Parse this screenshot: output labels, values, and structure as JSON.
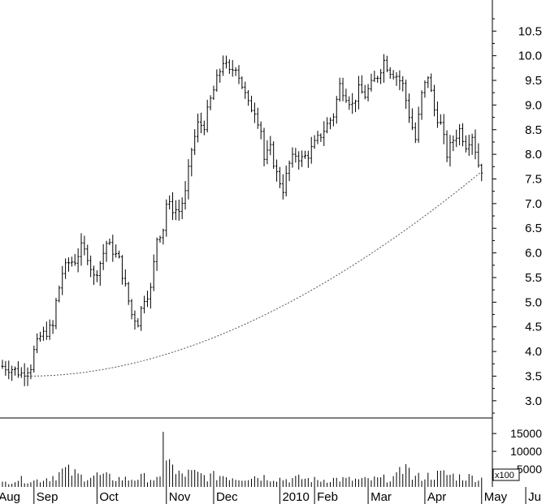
{
  "chart_data": {
    "type": "ohlc",
    "title": "",
    "xlabel": "",
    "ylabel": "",
    "price_axis": {
      "ylim": [
        2.75,
        10.9
      ],
      "ticks": [
        3.0,
        3.5,
        4.0,
        4.5,
        5.0,
        5.5,
        6.0,
        6.5,
        7.0,
        7.5,
        8.0,
        8.5,
        9.0,
        9.5,
        10.0,
        10.5
      ],
      "tick_labels": [
        "3.0",
        "3.5",
        "4.0",
        "4.5",
        "5.0",
        "5.5",
        "6.0",
        "6.5",
        "7.0",
        "7.5",
        "8.0",
        "8.5",
        "9.0",
        "9.5",
        "10.0",
        "10.5"
      ],
      "position": "right"
    },
    "volume_axis": {
      "ylim": [
        0,
        18000
      ],
      "ticks": [
        5000,
        10000,
        15000
      ],
      "tick_labels": [
        "5000",
        "10000",
        "15000"
      ],
      "multiplier_label": "x100"
    },
    "x_axis": {
      "labels": [
        "Aug",
        "Sep",
        "Oct",
        "Nov",
        "Dec",
        "2010",
        "Feb",
        "Mar",
        "Apr",
        "May",
        "Ju"
      ],
      "label_index": [
        -2,
        10,
        30,
        52,
        67,
        88,
        99,
        116,
        134,
        152,
        166
      ]
    },
    "grid": false,
    "colors": {
      "bars": "#000000",
      "trendline": "#555555",
      "background": "#ffffff"
    },
    "price_anchors": [
      [
        0,
        3.7
      ],
      [
        3,
        3.65
      ],
      [
        6,
        3.55
      ],
      [
        9,
        3.7
      ],
      [
        10,
        4.0
      ],
      [
        12,
        4.3
      ],
      [
        14,
        4.4
      ],
      [
        16,
        4.5
      ],
      [
        17,
        5.0
      ],
      [
        19,
        5.6
      ],
      [
        21,
        5.8
      ],
      [
        23,
        5.85
      ],
      [
        25,
        6.1
      ],
      [
        27,
        5.95
      ],
      [
        29,
        5.5
      ],
      [
        31,
        5.8
      ],
      [
        33,
        6.2
      ],
      [
        35,
        6.05
      ],
      [
        37,
        5.85
      ],
      [
        39,
        5.3
      ],
      [
        41,
        4.75
      ],
      [
        43,
        4.6
      ],
      [
        45,
        5.1
      ],
      [
        47,
        5.25
      ],
      [
        49,
        6.3
      ],
      [
        51,
        6.5
      ],
      [
        52,
        7.0
      ],
      [
        54,
        6.9
      ],
      [
        56,
        6.85
      ],
      [
        58,
        7.2
      ],
      [
        60,
        8.1
      ],
      [
        62,
        8.6
      ],
      [
        64,
        8.6
      ],
      [
        66,
        9.1
      ],
      [
        68,
        9.5
      ],
      [
        70,
        9.9
      ],
      [
        72,
        9.65
      ],
      [
        74,
        9.8
      ],
      [
        76,
        9.4
      ],
      [
        78,
        9.0
      ],
      [
        80,
        8.9
      ],
      [
        82,
        8.5
      ],
      [
        83,
        7.9
      ],
      [
        85,
        8.1
      ],
      [
        87,
        7.6
      ],
      [
        89,
        7.3
      ],
      [
        91,
        7.8
      ],
      [
        93,
        8.0
      ],
      [
        95,
        7.9
      ],
      [
        97,
        8.0
      ],
      [
        99,
        8.2
      ],
      [
        101,
        8.4
      ],
      [
        103,
        8.6
      ],
      [
        105,
        8.8
      ],
      [
        107,
        9.4
      ],
      [
        109,
        9.2
      ],
      [
        111,
        9.0
      ],
      [
        113,
        9.3
      ],
      [
        115,
        9.2
      ],
      [
        117,
        9.4
      ],
      [
        119,
        9.6
      ],
      [
        121,
        9.9
      ],
      [
        123,
        9.7
      ],
      [
        125,
        9.6
      ],
      [
        127,
        9.4
      ],
      [
        129,
        8.8
      ],
      [
        131,
        8.3
      ],
      [
        133,
        9.2
      ],
      [
        135,
        9.6
      ],
      [
        137,
        8.9
      ],
      [
        139,
        8.6
      ],
      [
        141,
        8.0
      ],
      [
        143,
        8.3
      ],
      [
        145,
        8.5
      ],
      [
        147,
        8.2
      ],
      [
        149,
        8.4
      ],
      [
        151,
        7.8
      ],
      [
        152,
        7.7
      ]
    ],
    "volume_anchors": [
      [
        0,
        1200
      ],
      [
        5,
        2400
      ],
      [
        10,
        1900
      ],
      [
        15,
        3000
      ],
      [
        20,
        5200
      ],
      [
        25,
        3200
      ],
      [
        30,
        3600
      ],
      [
        35,
        2800
      ],
      [
        40,
        2400
      ],
      [
        45,
        3000
      ],
      [
        50,
        2200
      ],
      [
        51,
        15500
      ],
      [
        53,
        7800
      ],
      [
        55,
        3800
      ],
      [
        60,
        4200
      ],
      [
        65,
        3200
      ],
      [
        70,
        3600
      ],
      [
        75,
        2800
      ],
      [
        80,
        3400
      ],
      [
        85,
        3000
      ],
      [
        90,
        2400
      ],
      [
        95,
        2700
      ],
      [
        100,
        2100
      ],
      [
        105,
        2500
      ],
      [
        110,
        2300
      ],
      [
        115,
        2200
      ],
      [
        120,
        2500
      ],
      [
        125,
        3100
      ],
      [
        128,
        6400
      ],
      [
        130,
        2900
      ],
      [
        135,
        3400
      ],
      [
        140,
        4000
      ],
      [
        145,
        3200
      ],
      [
        150,
        3000
      ],
      [
        152,
        2600
      ]
    ],
    "trendline": {
      "style": "dotted",
      "from": [
        8,
        3.5
      ],
      "to": [
        152,
        7.65
      ]
    }
  }
}
